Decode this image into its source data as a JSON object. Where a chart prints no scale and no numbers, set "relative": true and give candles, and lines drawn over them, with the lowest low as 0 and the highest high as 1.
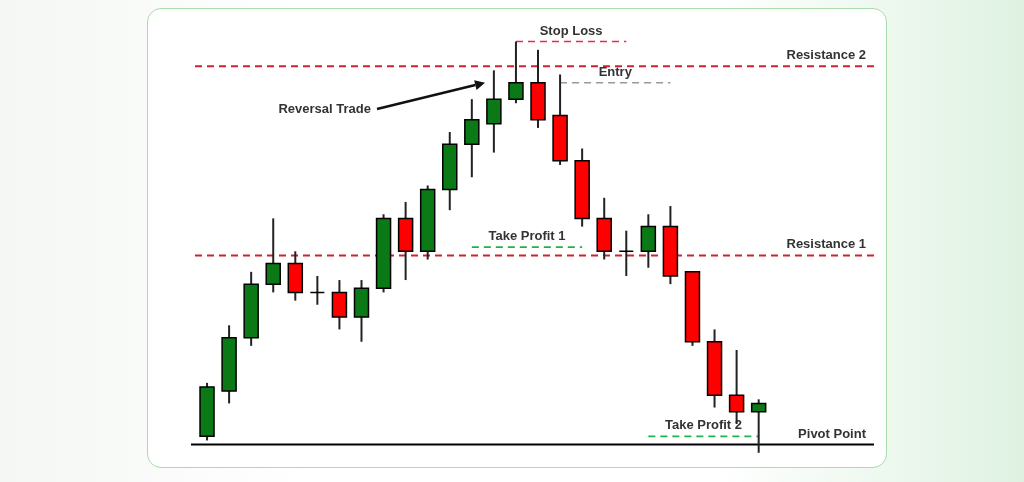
{
  "chart_data": {
    "type": "candlestick",
    "relative": true,
    "line_style": "dashed",
    "categories": [
      null,
      null,
      null,
      null,
      null,
      null,
      null,
      null,
      null,
      null,
      null,
      null,
      null,
      null,
      null,
      null,
      null,
      null,
      null,
      null,
      null,
      null,
      null,
      null,
      null,
      null
    ],
    "ohlc": [
      [
        0.04,
        0.17,
        0.03,
        0.16
      ],
      [
        0.15,
        0.31,
        0.12,
        0.28
      ],
      [
        0.28,
        0.44,
        0.26,
        0.41
      ],
      [
        0.41,
        0.57,
        0.39,
        0.46
      ],
      [
        0.46,
        0.49,
        0.37,
        0.39
      ],
      [
        0.39,
        0.43,
        0.36,
        0.39
      ],
      [
        0.39,
        0.42,
        0.3,
        0.33
      ],
      [
        0.33,
        0.42,
        0.27,
        0.4
      ],
      [
        0.4,
        0.58,
        0.39,
        0.57
      ],
      [
        0.57,
        0.61,
        0.42,
        0.49
      ],
      [
        0.49,
        0.65,
        0.47,
        0.64
      ],
      [
        0.64,
        0.78,
        0.59,
        0.75
      ],
      [
        0.75,
        0.86,
        0.67,
        0.81
      ],
      [
        0.8,
        0.93,
        0.73,
        0.86
      ],
      [
        0.86,
        1.0,
        0.85,
        0.9
      ],
      [
        0.9,
        0.98,
        0.79,
        0.81
      ],
      [
        0.82,
        0.92,
        0.7,
        0.71
      ],
      [
        0.71,
        0.74,
        0.55,
        0.57
      ],
      [
        0.57,
        0.62,
        0.47,
        0.49
      ],
      [
        0.49,
        0.54,
        0.43,
        0.49
      ],
      [
        0.49,
        0.58,
        0.45,
        0.55
      ],
      [
        0.55,
        0.6,
        0.41,
        0.43
      ],
      [
        0.44,
        0.44,
        0.26,
        0.27
      ],
      [
        0.27,
        0.3,
        0.11,
        0.14
      ],
      [
        0.14,
        0.25,
        0.07,
        0.1
      ],
      [
        0.1,
        0.13,
        0.0,
        0.12
      ]
    ],
    "colors": [
      "#0b7a16",
      "#0b7a16",
      "#0b7a16",
      "#0b7a16",
      "#ff0000",
      "#000000",
      "#ff0000",
      "#0b7a16",
      "#0b7a16",
      "#ff0000",
      "#0b7a16",
      "#0b7a16",
      "#0b7a16",
      "#0b7a16",
      "#0b7a16",
      "#ff0000",
      "#ff0000",
      "#ff0000",
      "#ff0000",
      "#000000",
      "#0b7a16",
      "#ff0000",
      "#ff0000",
      "#ff0000",
      "#ff0000",
      "#0b7a16"
    ],
    "series": [
      {
        "type": "line",
        "name": "Stop Loss",
        "color": "#e0304a",
        "values": [
          null,
          null,
          null,
          null,
          null,
          null,
          null,
          null,
          null,
          null,
          null,
          null,
          null,
          null,
          1.0,
          1.0,
          1.0,
          1.0,
          1.0,
          1.0,
          null,
          null,
          null,
          null,
          null,
          null
        ]
      },
      {
        "type": "line",
        "name": "Entry",
        "color": "#999999",
        "values": [
          null,
          null,
          null,
          null,
          null,
          null,
          null,
          null,
          null,
          null,
          null,
          null,
          null,
          null,
          null,
          null,
          0.9,
          0.9,
          0.9,
          0.9,
          0.9,
          0.9,
          null,
          null,
          null,
          null
        ]
      },
      {
        "type": "line",
        "name": "Take Profit 1",
        "color": "#22b14c",
        "values": [
          null,
          null,
          null,
          null,
          null,
          null,
          null,
          null,
          null,
          null,
          null,
          null,
          0.5,
          0.5,
          0.5,
          0.5,
          0.5,
          0.5,
          null,
          null,
          null,
          null,
          null,
          null,
          null,
          null
        ]
      },
      {
        "type": "line",
        "name": "Take Profit 2",
        "color": "#22b14c",
        "values": [
          null,
          null,
          null,
          null,
          null,
          null,
          null,
          null,
          null,
          null,
          null,
          null,
          null,
          null,
          null,
          null,
          null,
          null,
          null,
          null,
          0.04,
          0.04,
          0.04,
          0.04,
          0.04,
          0.04
        ]
      }
    ],
    "ref_lines": [
      {
        "axis": "y",
        "value": 0.94,
        "label": "Resistance 2",
        "color": "#d3202f",
        "line_style": "dashed"
      },
      {
        "axis": "y",
        "value": 0.48,
        "label": "Resistance 1",
        "color": "#d3202f",
        "line_style": "dashed"
      },
      {
        "axis": "y",
        "value": 0.02,
        "label": "Pivot Point",
        "color": "#000000",
        "line_style": "solid"
      }
    ],
    "annotations": [
      "Reversal Trade"
    ]
  }
}
